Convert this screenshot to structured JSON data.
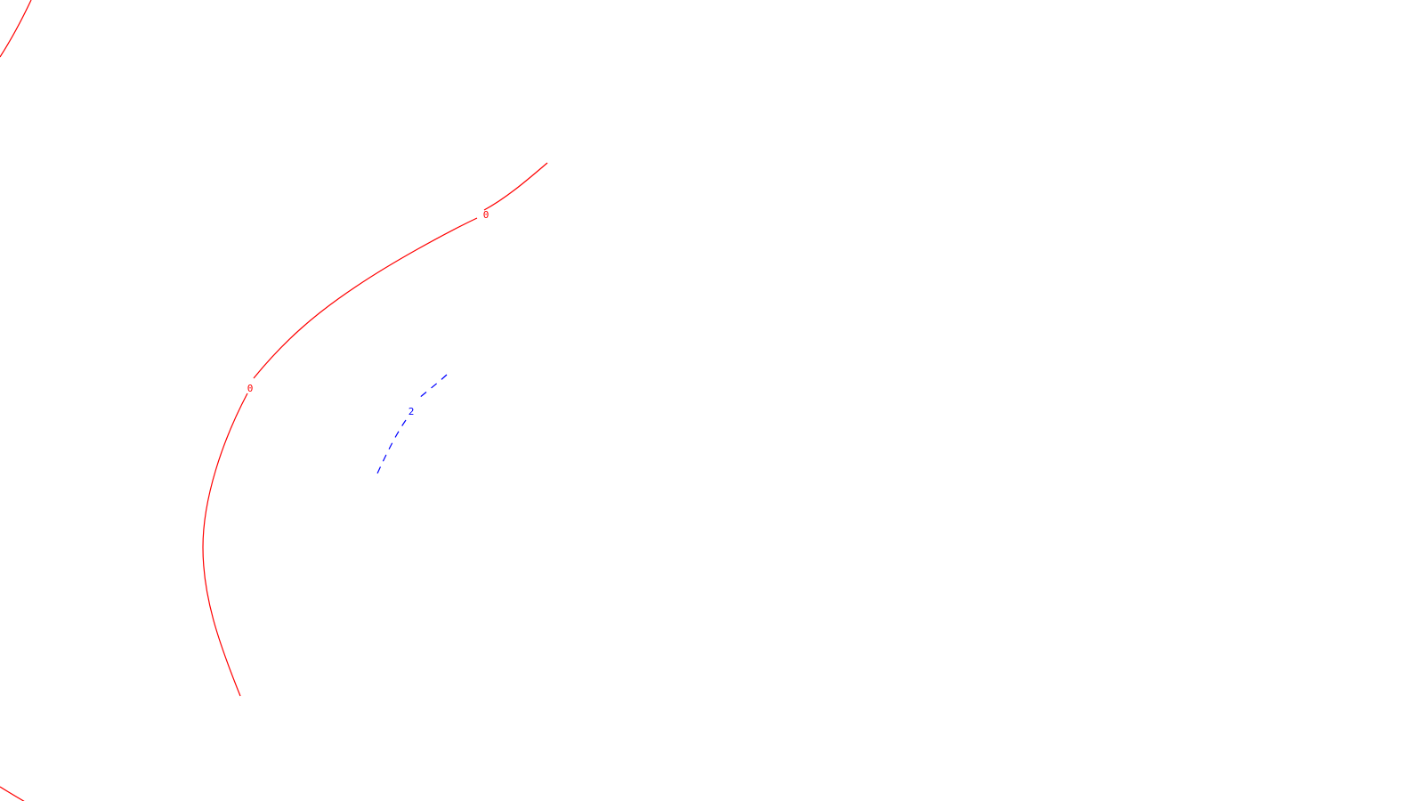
{
  "contours": {
    "colors": {
      "zero_level": "#ff0000",
      "positive_level": "#0000ff"
    },
    "line_styles": {
      "zero_level": "solid",
      "positive_level": "dashed"
    },
    "levels": [
      {
        "value": "0"
      },
      {
        "value": "2"
      }
    ],
    "labels": {
      "zero_upper": "0",
      "zero_lower": "0",
      "positive": "2"
    }
  }
}
